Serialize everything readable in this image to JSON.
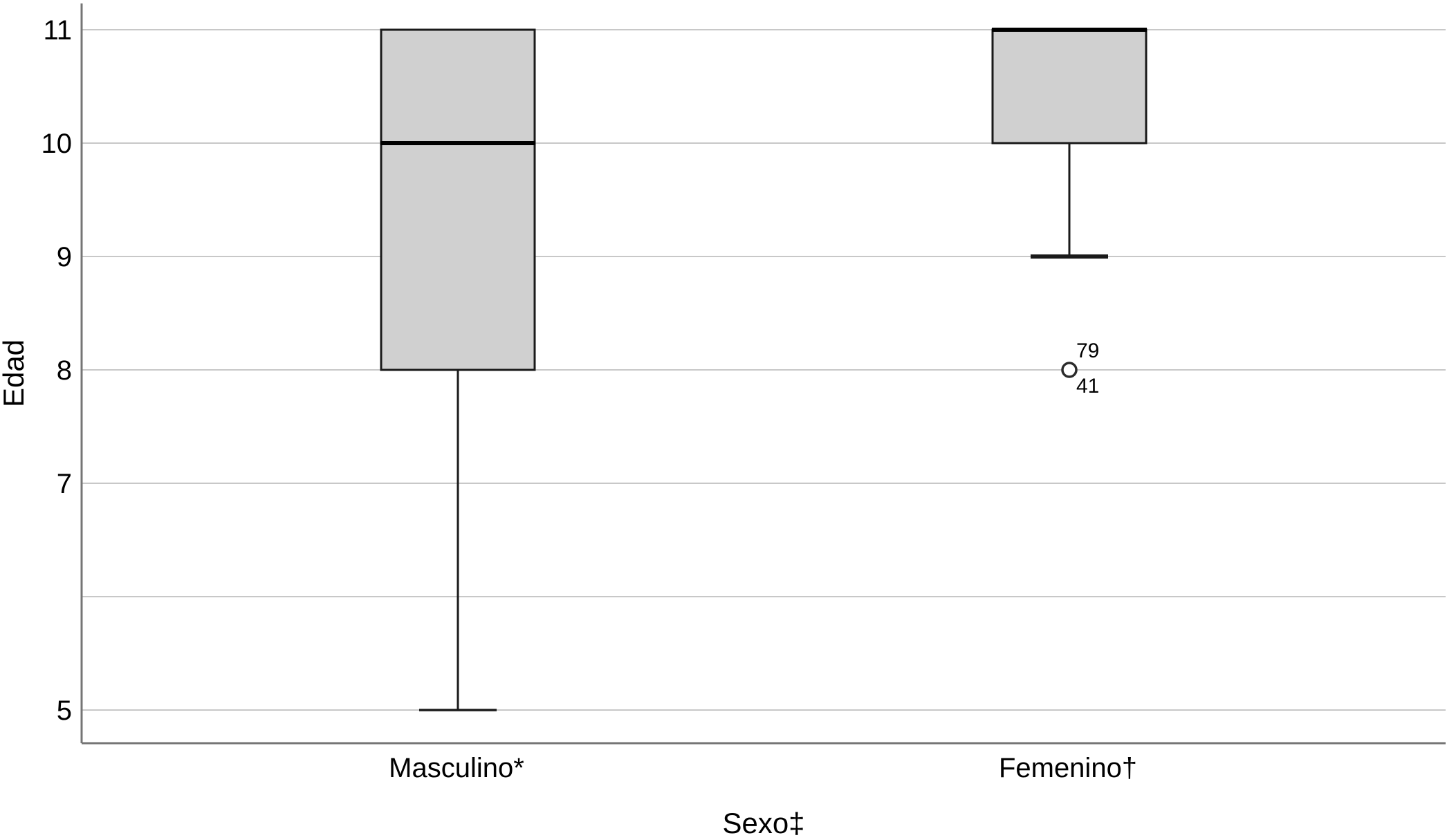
{
  "chart_data": {
    "type": "boxplot",
    "title": "",
    "xlabel": "Sexo‡",
    "ylabel": "Edad",
    "ylim": [
      4.7,
      11.25
    ],
    "grid": "horizontal",
    "yticks": [
      {
        "value": 11,
        "label": "11"
      },
      {
        "value": 10,
        "label": "10"
      },
      {
        "value": 9,
        "label": "9"
      },
      {
        "value": 8,
        "label": "8"
      },
      {
        "value": 7,
        "label": "7"
      },
      {
        "value": 6,
        "label": ""
      },
      {
        "value": 5,
        "label": "5"
      }
    ],
    "categories": [
      "Masculino*",
      "Femenino†"
    ],
    "series": [
      {
        "name": "Masculino*",
        "q1": 8,
        "median": 10,
        "q3": 11,
        "whisker_low": 5,
        "whisker_high": 11,
        "outliers": []
      },
      {
        "name": "Femenino†",
        "q1": 10,
        "median": 11,
        "q3": 11,
        "whisker_low": 9,
        "whisker_high": 11,
        "outliers": [
          {
            "value": 8,
            "labels": [
              "79",
              "41"
            ]
          }
        ]
      }
    ],
    "colors": {
      "background": "#ffffff",
      "box_fill": "#d0d0d0",
      "box_border": "#1a1a1a",
      "median": "#000000",
      "whisker": "#1a1a1a",
      "gridline": "#c8c8c8",
      "spine": "#757575",
      "outlier_stroke": "#2b2b2b",
      "outlier_fill": "#ffffff",
      "text": "#000000"
    }
  }
}
